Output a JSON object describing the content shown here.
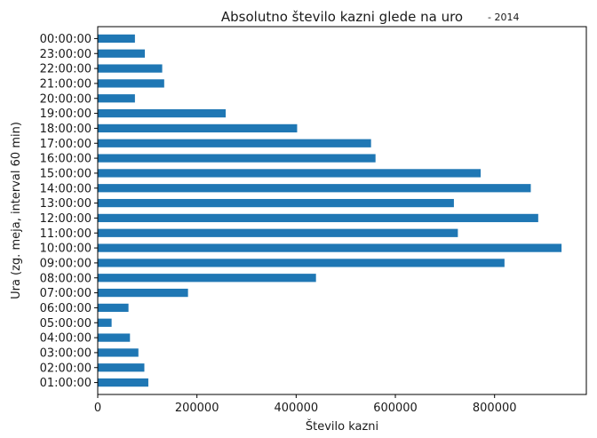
{
  "chart_data": {
    "type": "bar",
    "orientation": "horizontal",
    "title": "Absolutno število kazni glede na uro",
    "subtitle": "- 2014",
    "xlabel": "Število kazni",
    "ylabel": "Ura (zg. meja, interval 60 min)",
    "xlim": [
      0,
      985000
    ],
    "xticks": [
      0,
      200000,
      400000,
      600000,
      800000
    ],
    "xtick_labels": [
      "0",
      "200000",
      "400000",
      "600000",
      "800000"
    ],
    "grid": false,
    "bar_color": "#1f77b4",
    "categories": [
      "01:00:00",
      "02:00:00",
      "03:00:00",
      "04:00:00",
      "05:00:00",
      "06:00:00",
      "07:00:00",
      "08:00:00",
      "09:00:00",
      "10:00:00",
      "11:00:00",
      "12:00:00",
      "13:00:00",
      "14:00:00",
      "15:00:00",
      "16:00:00",
      "17:00:00",
      "18:00:00",
      "19:00:00",
      "20:00:00",
      "21:00:00",
      "22:00:00",
      "23:00:00",
      "00:00:00"
    ],
    "values": [
      102000,
      94000,
      82000,
      65000,
      28000,
      62000,
      182000,
      440000,
      820000,
      935000,
      726000,
      888000,
      718000,
      873000,
      772000,
      560000,
      551000,
      402000,
      258000,
      75000,
      134000,
      130000,
      95000,
      75000
    ]
  }
}
